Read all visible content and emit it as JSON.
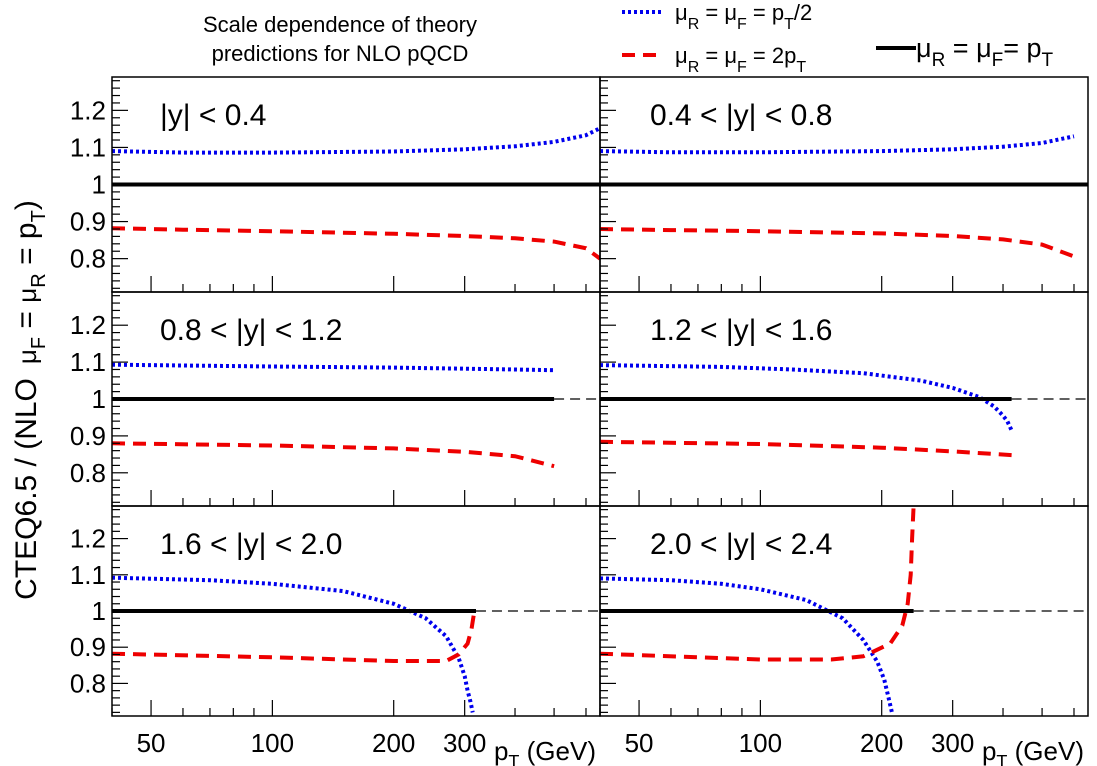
{
  "chart_data": {
    "type": "line",
    "title_lines": [
      "Scale dependence of theory",
      "predictions for NLO pQCD"
    ],
    "ylabel_parts": {
      "pre": "CTEQ6.5 / (NLO",
      "mu": "μ",
      "sub_f": "F",
      "eq": " = ",
      "sub_r": "R",
      "eq2": " = p",
      "sub_t": "T",
      "post": ")"
    },
    "xlabel_parts": {
      "p": "p",
      "sub_t": "T",
      "unit": " (GeV)"
    },
    "legend": [
      {
        "parts": [
          "μ",
          "R",
          " = μ",
          "F",
          " = p",
          "T",
          "/2"
        ],
        "style": "dotted",
        "color": "#0000ee"
      },
      {
        "parts": [
          "μ",
          "R",
          " = μ",
          "F",
          " = 2p",
          "T",
          ""
        ],
        "style": "dashed",
        "color": "#ee0000"
      },
      {
        "parts": [
          "μ",
          "R",
          " = μ",
          "F",
          "= p",
          "T",
          ""
        ],
        "style": "solid",
        "color": "#000000"
      }
    ],
    "x_scale": "log",
    "xlim": [
      40,
      650
    ],
    "ylim": [
      0.71,
      1.29
    ],
    "x_ticks": [
      50,
      100,
      200,
      300
    ],
    "x_tick_labels": [
      "50",
      "100",
      "200",
      "300"
    ],
    "y_ticks": [
      0.8,
      0.9,
      1.0,
      1.1,
      1.2
    ],
    "y_tick_labels": [
      "0.8",
      "0.9",
      "1",
      "1.1",
      "1.2"
    ],
    "panels": [
      {
        "label": "|y| < 0.4",
        "series": [
          {
            "style": "dotted",
            "x": [
              40,
              60,
              100,
              200,
              300,
              400,
              500,
              600,
              650
            ],
            "y": [
              1.09,
              1.086,
              1.086,
              1.089,
              1.095,
              1.103,
              1.115,
              1.133,
              1.152
            ]
          },
          {
            "style": "dashed",
            "x": [
              40,
              60,
              100,
              200,
              300,
              400,
              500,
              600,
              650
            ],
            "y": [
              0.882,
              0.878,
              0.874,
              0.867,
              0.861,
              0.855,
              0.846,
              0.828,
              0.8
            ]
          },
          {
            "style": "solid",
            "x": [
              40,
              650
            ],
            "y": [
              1.0,
              1.0
            ]
          }
        ]
      },
      {
        "label": "0.4 < |y| < 0.8",
        "series": [
          {
            "style": "dotted",
            "x": [
              40,
              60,
              100,
              200,
              300,
              400,
              500,
              600
            ],
            "y": [
              1.09,
              1.087,
              1.087,
              1.09,
              1.095,
              1.102,
              1.112,
              1.13
            ]
          },
          {
            "style": "dashed",
            "x": [
              40,
              60,
              100,
              200,
              300,
              400,
              500,
              600
            ],
            "y": [
              0.88,
              0.877,
              0.874,
              0.868,
              0.861,
              0.852,
              0.838,
              0.806
            ]
          },
          {
            "style": "solid",
            "x": [
              40,
              650
            ],
            "y": [
              1.0,
              1.0
            ]
          }
        ]
      },
      {
        "label": "0.8 < |y| < 1.2",
        "series": [
          {
            "style": "dotted",
            "x": [
              40,
              100,
              200,
              300,
              400,
              500
            ],
            "y": [
              1.093,
              1.088,
              1.085,
              1.082,
              1.08,
              1.078
            ]
          },
          {
            "style": "dashed",
            "x": [
              40,
              100,
              200,
              300,
              400,
              500
            ],
            "y": [
              0.88,
              0.874,
              0.866,
              0.857,
              0.845,
              0.818
            ]
          },
          {
            "style": "solid",
            "x": [
              40,
              500
            ],
            "y": [
              1.0,
              1.0
            ]
          }
        ],
        "ref_line_from": 500
      },
      {
        "label": "1.2 < |y| < 1.6",
        "series": [
          {
            "style": "dotted",
            "x": [
              40,
              80,
              120,
              180,
              250,
              300,
              350,
              380,
              400,
              410,
              420
            ],
            "y": [
              1.092,
              1.087,
              1.08,
              1.07,
              1.05,
              1.03,
              1.005,
              0.98,
              0.955,
              0.94,
              0.915
            ]
          },
          {
            "style": "dashed",
            "x": [
              40,
              100,
              200,
              300,
              420
            ],
            "y": [
              0.884,
              0.878,
              0.868,
              0.858,
              0.848
            ]
          },
          {
            "style": "solid",
            "x": [
              40,
              420
            ],
            "y": [
              1.0,
              1.0
            ]
          }
        ],
        "ref_line_from": 420
      },
      {
        "label": "1.6 < |y| < 2.0",
        "series": [
          {
            "style": "dotted",
            "x": [
              40,
              70,
              100,
              150,
              200,
              240,
              270,
              290,
              300,
              305,
              310,
              314
            ],
            "y": [
              1.092,
              1.085,
              1.075,
              1.055,
              1.02,
              0.98,
              0.93,
              0.87,
              0.82,
              0.78,
              0.75,
              0.72
            ]
          },
          {
            "style": "dashed",
            "x": [
              40,
              100,
              200,
              270,
              290,
              305,
              312,
              316
            ],
            "y": [
              0.882,
              0.872,
              0.862,
              0.862,
              0.88,
              0.91,
              0.95,
              0.99
            ]
          },
          {
            "style": "solid",
            "x": [
              40,
              320
            ],
            "y": [
              1.0,
              1.0
            ]
          }
        ],
        "ref_line_from": 320
      },
      {
        "label": "2.0 < |y| < 2.4",
        "series": [
          {
            "style": "dotted",
            "x": [
              40,
              60,
              80,
              100,
              130,
              160,
              180,
              195,
              203,
              208,
              212
            ],
            "y": [
              1.09,
              1.085,
              1.075,
              1.06,
              1.03,
              0.98,
              0.92,
              0.86,
              0.81,
              0.76,
              0.72
            ]
          },
          {
            "style": "dashed",
            "x": [
              40,
              100,
              150,
              180,
              210,
              225,
              232,
              236,
              238,
              240
            ],
            "y": [
              0.882,
              0.866,
              0.866,
              0.875,
              0.91,
              0.96,
              1.02,
              1.1,
              1.2,
              1.29
            ]
          },
          {
            "style": "solid",
            "x": [
              40,
              240
            ],
            "y": [
              1.0,
              1.0
            ]
          }
        ],
        "ref_line_from": 240
      }
    ]
  }
}
